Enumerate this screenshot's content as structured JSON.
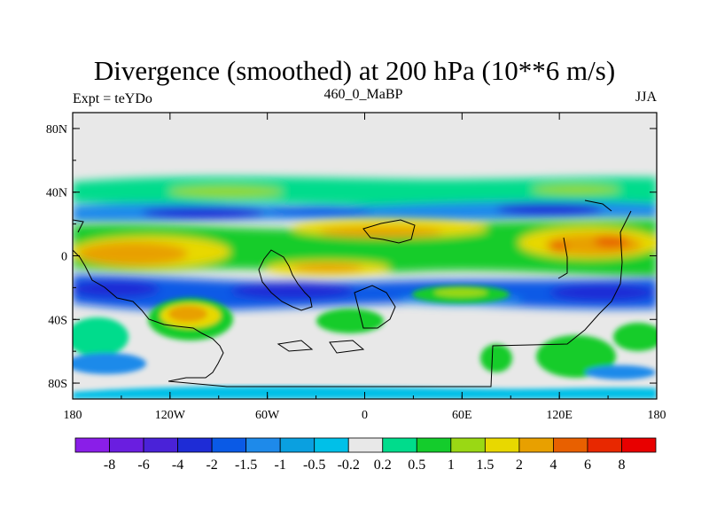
{
  "chart_data": {
    "type": "heatmap",
    "title": "Divergence (smoothed) at 200 hPa (10**6 m/s)",
    "left_label": "Expt = teYDo",
    "center_label": "460_0_MaBP",
    "right_label": "JJA",
    "x_ticks": [
      "180",
      "120W",
      "60W",
      "0",
      "60E",
      "120E",
      "180"
    ],
    "y_ticks": [
      "80N",
      "40N",
      "0",
      "40S",
      "80S"
    ],
    "xlim": [
      -180,
      180
    ],
    "ylim": [
      -90,
      90
    ],
    "colorbar": {
      "labels": [
        "-8",
        "-6",
        "-4",
        "-2",
        "-1.5",
        "-1",
        "-0.5",
        "-0.2",
        "0.2",
        "0.5",
        "1",
        "1.5",
        "2",
        "4",
        "6",
        "8"
      ],
      "colors": [
        "#8a1ee8",
        "#6a1ee0",
        "#4a22d8",
        "#1e2cd6",
        "#0a5ae6",
        "#1e8aea",
        "#0aa0e0",
        "#00c0e8",
        "#e8e8e8",
        "#00dc8c",
        "#14cc2c",
        "#9ad814",
        "#e8d800",
        "#e8a000",
        "#e86000",
        "#e82800",
        "#e80000"
      ]
    },
    "field_colors": {
      "background": "#e8e8e8",
      "coast": "#000000"
    }
  }
}
